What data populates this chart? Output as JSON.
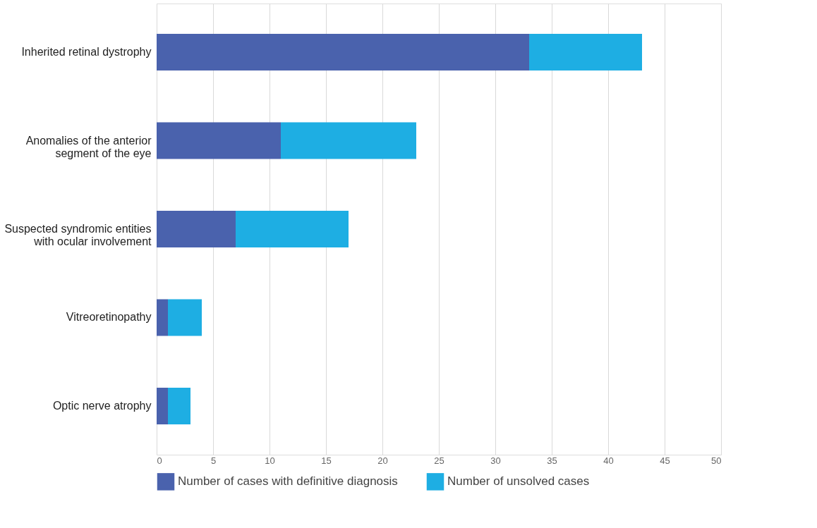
{
  "chart_data": {
    "type": "bar",
    "orientation": "horizontal",
    "stacked": true,
    "categories": [
      "Inherited retinal dystrophy",
      "Anomalies of the anterior\nsegment of the eye",
      "Suspected syndromic entities\nwith ocular involvement",
      "Vitreoretinopathy",
      "Optic nerve atrophy"
    ],
    "series": [
      {
        "name": "Number of cases with definitive diagnosis",
        "color": "#4a62ad",
        "values": [
          33,
          11,
          7,
          1,
          1
        ]
      },
      {
        "name": "Number of unsolved cases",
        "color": "#1eaee3",
        "values": [
          10,
          12,
          10,
          3,
          2
        ]
      }
    ],
    "xlim": [
      0,
      50
    ],
    "xticks": [
      0,
      5,
      10,
      15,
      20,
      25,
      30,
      35,
      40,
      45,
      50
    ],
    "grid": "x",
    "legend": "bottom left"
  }
}
